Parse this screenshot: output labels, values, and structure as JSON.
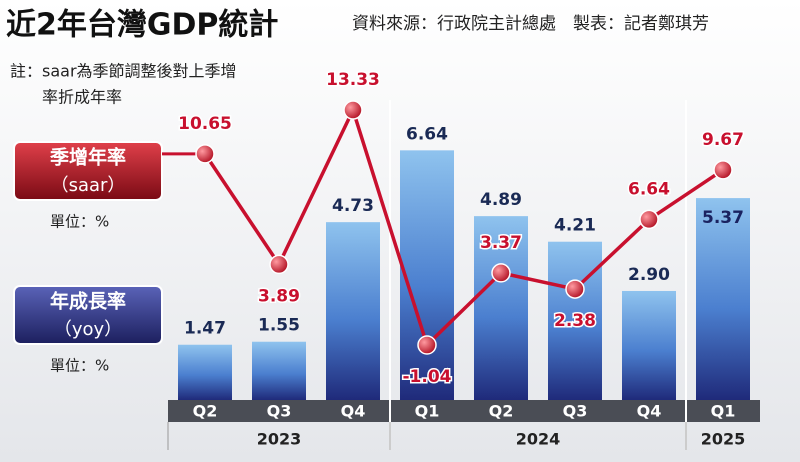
{
  "chart_data": {
    "type": "bar_line",
    "title": "近2年台灣GDP統計",
    "source": "資料來源：行政院主計總處　製表：記者鄭琪芳",
    "note": [
      "註：saar為季節調整後對上季增",
      "率折成年率"
    ],
    "groups": [
      {
        "label": "2023",
        "categories": [
          "Q2",
          "Q3",
          "Q4"
        ]
      },
      {
        "label": "2024",
        "categories": [
          "Q1",
          "Q2",
          "Q3",
          "Q4"
        ]
      },
      {
        "label": "2025",
        "categories": [
          "Q1"
        ]
      }
    ],
    "series": [
      {
        "name": "年成長率",
        "abbr": "（yoy）",
        "unit_label": "單位：%",
        "type": "bar",
        "color": "#3d6fc4",
        "values": [
          1.47,
          1.55,
          4.73,
          6.64,
          4.89,
          4.21,
          2.9,
          5.37
        ],
        "value_labels": [
          "1.47",
          "1.55",
          "4.73",
          "6.64",
          "4.89",
          "4.21",
          "2.90",
          "5.37"
        ]
      },
      {
        "name": "季增年率",
        "abbr": "（saar）",
        "unit_label": "單位：%",
        "type": "line",
        "color": "#c8102e",
        "values": [
          10.65,
          3.89,
          13.33,
          -1.04,
          3.37,
          2.38,
          6.64,
          9.67
        ],
        "value_labels": [
          "10.65",
          "3.89",
          "13.33",
          "-1.04",
          "3.37",
          "2.38",
          "6.64",
          "9.67"
        ]
      }
    ]
  }
}
